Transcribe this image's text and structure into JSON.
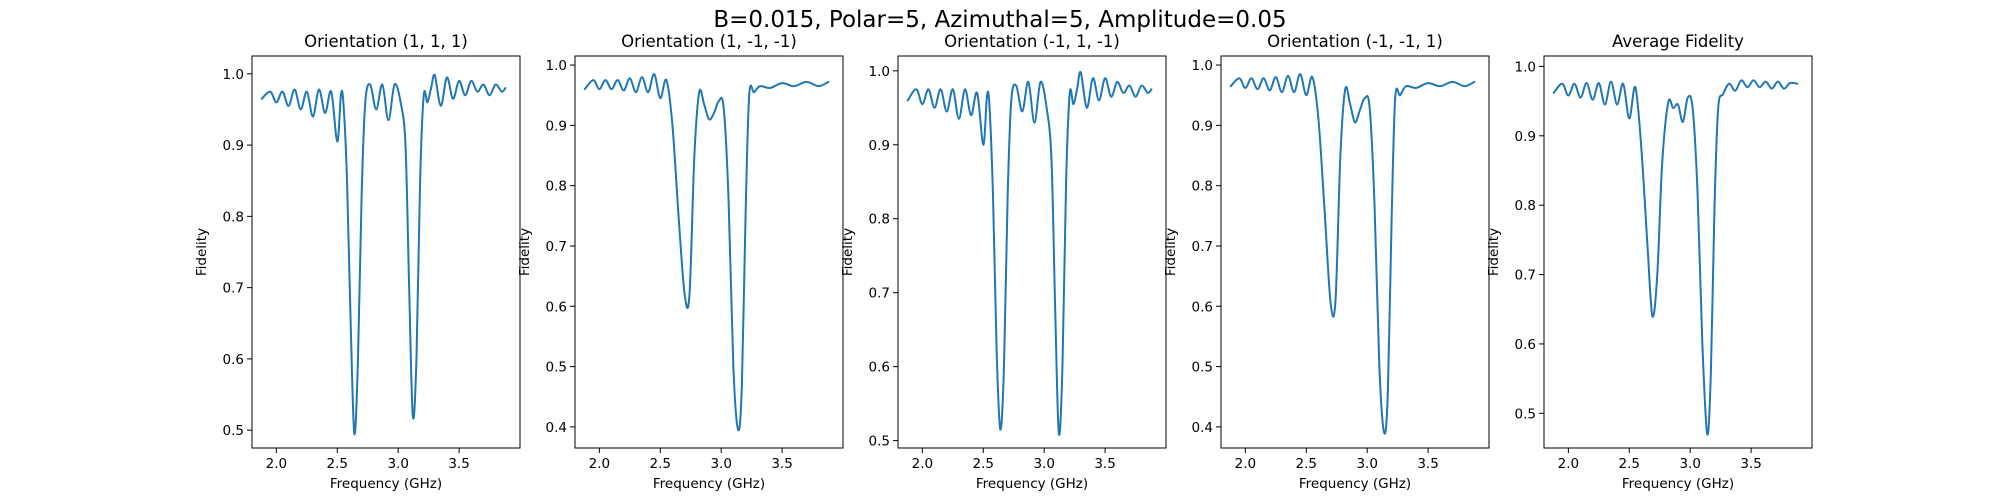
{
  "figure": {
    "suptitle": "B=0.015, Polar=5, Azimuthal=5, Amplitude=0.05",
    "line_color": "#1f77b4",
    "grid": false,
    "legend": "none"
  },
  "chart_data": [
    {
      "type": "line",
      "title": "Orientation (1, 1, 1)",
      "xlabel": "Frequency (GHz)",
      "ylabel": "Fidelity",
      "xlim": [
        1.8,
        4.0
      ],
      "ylim": [
        0.475,
        1.025
      ],
      "xticks": [
        "2.0",
        "2.5",
        "3.0",
        "3.5"
      ],
      "yticks": [
        "0.5",
        "0.6",
        "0.7",
        "0.8",
        "0.9",
        "1.0"
      ],
      "series": [
        {
          "x": [
            1.88,
            1.95,
            2.0,
            2.05,
            2.1,
            2.15,
            2.2,
            2.25,
            2.3,
            2.35,
            2.4,
            2.45,
            2.5,
            2.53,
            2.55,
            2.58,
            2.61,
            2.64,
            2.67,
            2.7,
            2.73,
            2.77,
            2.82,
            2.87,
            2.92,
            2.97,
            3.02,
            3.06,
            3.09,
            3.12,
            3.15,
            3.18,
            3.21,
            3.24,
            3.27,
            3.3,
            3.35,
            3.4,
            3.45,
            3.5,
            3.55,
            3.6,
            3.65,
            3.7,
            3.75,
            3.8,
            3.85,
            3.88
          ],
          "y": [
            0.965,
            0.975,
            0.96,
            0.975,
            0.955,
            0.978,
            0.95,
            0.975,
            0.94,
            0.978,
            0.945,
            0.975,
            0.905,
            0.97,
            0.96,
            0.85,
            0.65,
            0.495,
            0.6,
            0.83,
            0.96,
            0.985,
            0.95,
            0.985,
            0.935,
            0.985,
            0.96,
            0.9,
            0.7,
            0.52,
            0.6,
            0.85,
            0.97,
            0.96,
            0.98,
            0.998,
            0.955,
            0.995,
            0.965,
            0.99,
            0.97,
            0.99,
            0.975,
            0.985,
            0.97,
            0.985,
            0.975,
            0.98
          ]
        }
      ]
    },
    {
      "type": "line",
      "title": "Orientation (1, -1, -1)",
      "xlabel": "Frequency (GHz)",
      "ylabel": "Fidelity",
      "xlim": [
        1.8,
        4.0
      ],
      "ylim": [
        0.365,
        1.015
      ],
      "xticks": [
        "2.0",
        "2.5",
        "3.0",
        "3.5"
      ],
      "yticks": [
        "0.4",
        "0.5",
        "0.6",
        "0.7",
        "0.8",
        "0.9",
        "1.0"
      ],
      "series": [
        {
          "x": [
            1.88,
            1.95,
            2.0,
            2.05,
            2.1,
            2.15,
            2.2,
            2.25,
            2.3,
            2.35,
            2.4,
            2.45,
            2.5,
            2.55,
            2.6,
            2.65,
            2.7,
            2.74,
            2.78,
            2.82,
            2.86,
            2.9,
            2.94,
            2.98,
            3.02,
            3.06,
            3.1,
            3.14,
            3.17,
            3.2,
            3.23,
            3.27,
            3.32,
            3.4,
            3.5,
            3.6,
            3.7,
            3.8,
            3.88
          ],
          "y": [
            0.96,
            0.975,
            0.96,
            0.975,
            0.96,
            0.975,
            0.958,
            0.978,
            0.955,
            0.98,
            0.955,
            0.985,
            0.945,
            0.975,
            0.9,
            0.75,
            0.62,
            0.62,
            0.85,
            0.955,
            0.935,
            0.91,
            0.92,
            0.94,
            0.93,
            0.78,
            0.5,
            0.395,
            0.47,
            0.75,
            0.95,
            0.955,
            0.965,
            0.962,
            0.97,
            0.965,
            0.972,
            0.965,
            0.972
          ]
        }
      ]
    },
    {
      "type": "line",
      "title": "Orientation (-1, 1, -1)",
      "xlabel": "Frequency (GHz)",
      "ylabel": "Fidelity",
      "xlim": [
        1.8,
        4.0
      ],
      "ylim": [
        0.49,
        1.02
      ],
      "xticks": [
        "2.0",
        "2.5",
        "3.0",
        "3.5"
      ],
      "yticks": [
        "0.5",
        "0.6",
        "0.7",
        "0.8",
        "0.9",
        "1.0"
      ],
      "series": [
        {
          "x": [
            1.88,
            1.95,
            2.0,
            2.05,
            2.1,
            2.15,
            2.2,
            2.25,
            2.3,
            2.35,
            2.4,
            2.45,
            2.5,
            2.53,
            2.55,
            2.58,
            2.61,
            2.64,
            2.67,
            2.7,
            2.73,
            2.77,
            2.82,
            2.87,
            2.92,
            2.97,
            3.02,
            3.06,
            3.09,
            3.12,
            3.15,
            3.18,
            3.21,
            3.24,
            3.27,
            3.3,
            3.35,
            3.4,
            3.45,
            3.5,
            3.55,
            3.6,
            3.65,
            3.7,
            3.75,
            3.8,
            3.85,
            3.88
          ],
          "y": [
            0.96,
            0.975,
            0.955,
            0.975,
            0.95,
            0.975,
            0.945,
            0.975,
            0.935,
            0.975,
            0.94,
            0.97,
            0.9,
            0.965,
            0.955,
            0.83,
            0.62,
            0.515,
            0.6,
            0.83,
            0.96,
            0.98,
            0.945,
            0.985,
            0.93,
            0.985,
            0.95,
            0.88,
            0.68,
            0.51,
            0.6,
            0.85,
            0.97,
            0.955,
            0.975,
            0.998,
            0.95,
            0.99,
            0.96,
            0.99,
            0.965,
            0.985,
            0.97,
            0.98,
            0.965,
            0.98,
            0.97,
            0.975
          ]
        }
      ]
    },
    {
      "type": "line",
      "title": "Orientation (-1, -1, 1)",
      "xlabel": "Frequency (GHz)",
      "ylabel": "Fidelity",
      "xlim": [
        1.8,
        4.0
      ],
      "ylim": [
        0.365,
        1.015
      ],
      "xticks": [
        "2.0",
        "2.5",
        "3.0",
        "3.5"
      ],
      "yticks": [
        "0.4",
        "0.5",
        "0.6",
        "0.7",
        "0.8",
        "0.9",
        "1.0"
      ],
      "series": [
        {
          "x": [
            1.88,
            1.95,
            2.0,
            2.05,
            2.1,
            2.15,
            2.2,
            2.25,
            2.3,
            2.35,
            2.4,
            2.45,
            2.5,
            2.55,
            2.6,
            2.65,
            2.7,
            2.74,
            2.78,
            2.82,
            2.86,
            2.9,
            2.94,
            2.98,
            3.02,
            3.06,
            3.1,
            3.14,
            3.17,
            3.2,
            3.23,
            3.27,
            3.32,
            3.4,
            3.5,
            3.6,
            3.7,
            3.8,
            3.88
          ],
          "y": [
            0.965,
            0.978,
            0.962,
            0.978,
            0.96,
            0.978,
            0.958,
            0.98,
            0.955,
            0.982,
            0.955,
            0.985,
            0.95,
            0.98,
            0.91,
            0.76,
            0.605,
            0.61,
            0.85,
            0.96,
            0.935,
            0.905,
            0.925,
            0.945,
            0.93,
            0.77,
            0.5,
            0.39,
            0.46,
            0.74,
            0.945,
            0.95,
            0.965,
            0.962,
            0.97,
            0.965,
            0.972,
            0.965,
            0.972
          ]
        }
      ]
    },
    {
      "type": "line",
      "title": "Average Fidelity",
      "xlabel": "Frequency (GHz)",
      "ylabel": "Fidelity",
      "xlim": [
        1.8,
        4.0
      ],
      "ylim": [
        0.45,
        1.015
      ],
      "xticks": [
        "2.0",
        "2.5",
        "3.0",
        "3.5"
      ],
      "yticks": [
        "0.5",
        "0.6",
        "0.7",
        "0.8",
        "0.9",
        "1.0"
      ],
      "series": [
        {
          "x": [
            1.88,
            1.95,
            2.0,
            2.05,
            2.1,
            2.15,
            2.2,
            2.25,
            2.3,
            2.35,
            2.4,
            2.45,
            2.5,
            2.55,
            2.6,
            2.65,
            2.69,
            2.73,
            2.77,
            2.82,
            2.86,
            2.9,
            2.94,
            2.98,
            3.02,
            3.06,
            3.1,
            3.14,
            3.17,
            3.2,
            3.23,
            3.27,
            3.32,
            3.37,
            3.42,
            3.47,
            3.52,
            3.57,
            3.62,
            3.67,
            3.72,
            3.77,
            3.82,
            3.88
          ],
          "y": [
            0.962,
            0.975,
            0.958,
            0.975,
            0.955,
            0.976,
            0.952,
            0.976,
            0.945,
            0.978,
            0.945,
            0.975,
            0.925,
            0.97,
            0.88,
            0.74,
            0.64,
            0.7,
            0.86,
            0.948,
            0.94,
            0.945,
            0.92,
            0.955,
            0.94,
            0.82,
            0.6,
            0.47,
            0.56,
            0.8,
            0.94,
            0.96,
            0.975,
            0.965,
            0.98,
            0.97,
            0.98,
            0.97,
            0.978,
            0.968,
            0.978,
            0.968,
            0.976,
            0.975
          ]
        }
      ]
    }
  ]
}
